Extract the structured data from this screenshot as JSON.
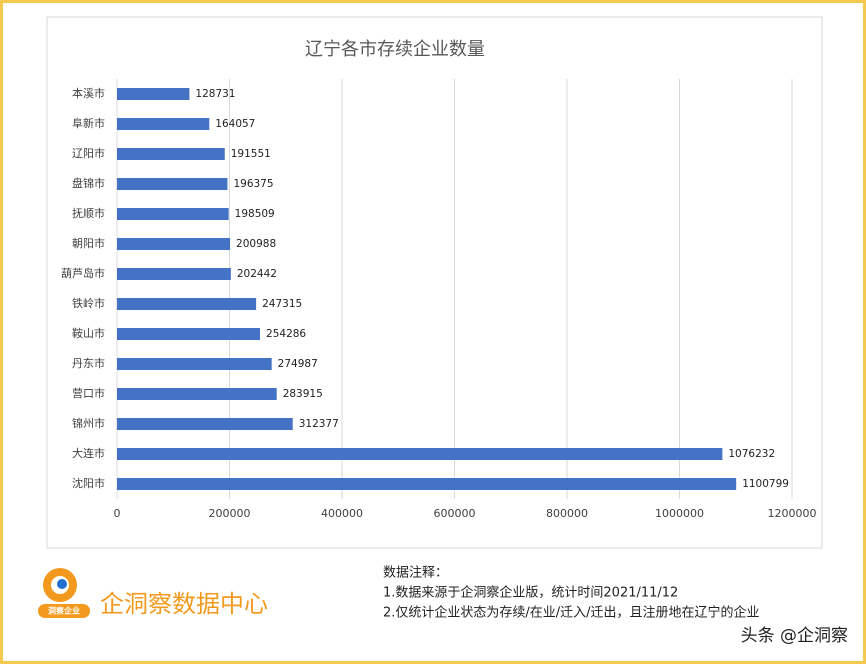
{
  "chart_data": {
    "type": "bar",
    "orientation": "horizontal",
    "title": "辽宁各市存续企业数量",
    "categories": [
      "本溪市",
      "阜新市",
      "辽阳市",
      "盘锦市",
      "抚顺市",
      "朝阳市",
      "葫芦岛市",
      "铁岭市",
      "鞍山市",
      "丹东市",
      "营口市",
      "锦州市",
      "大连市",
      "沈阳市"
    ],
    "values": [
      128731,
      164057,
      191551,
      196375,
      198509,
      200988,
      202442,
      247315,
      254286,
      274987,
      283915,
      312377,
      1076232,
      1100799
    ],
    "color": "#4472c4",
    "xlim": [
      0,
      1200000
    ],
    "xticks": [
      0,
      200000,
      400000,
      600000,
      800000,
      1000000,
      1200000
    ],
    "grid": true
  },
  "footer": {
    "logo_badge": "洞察企业",
    "brand": "企洞察数据中心",
    "notes_title": "数据注释：",
    "notes": [
      "1.数据来源于企洞察企业版，统计时间2021/11/12",
      "2.仅统计企业状态为存续/在业/迁入/迁出，且注册地在辽宁的企业"
    ],
    "credit": "头条 @企洞察"
  }
}
